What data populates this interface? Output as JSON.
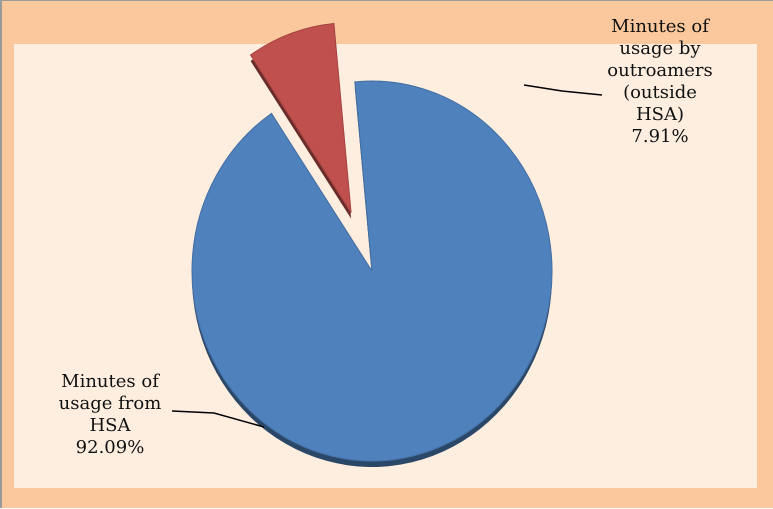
{
  "chart_data": {
    "type": "pie",
    "categories": [
      "Minutes of usage from HSA",
      "Minutes of usage by outroamers (outside HSA)"
    ],
    "values": [
      92.09,
      7.91
    ],
    "value_labels": [
      "92.09%",
      "7.91%"
    ],
    "colors": [
      "#4f81bd",
      "#c0504d"
    ]
  }
}
